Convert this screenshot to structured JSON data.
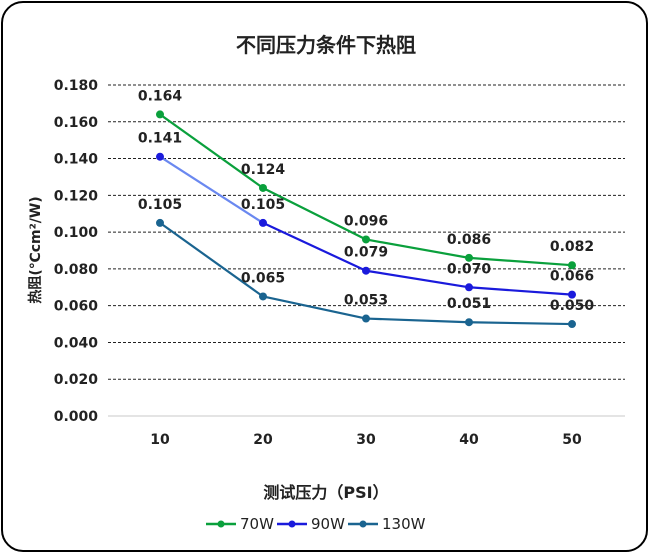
{
  "chart_data": {
    "type": "line",
    "title": "不同压力条件下热阻",
    "xlabel": "测试压力（PSI）",
    "ylabel": "热阻(℃cm²/W)",
    "categories": [
      "10",
      "20",
      "30",
      "40",
      "50"
    ],
    "ylim": [
      0,
      0.18
    ],
    "yticks": [
      "0.000",
      "0.020",
      "0.040",
      "0.060",
      "0.080",
      "0.100",
      "0.120",
      "0.140",
      "0.160",
      "0.180"
    ],
    "grid": true,
    "legend": "bottom",
    "series": [
      {
        "name": "70W",
        "color": "#0aa03c",
        "values": [
          0.164,
          0.124,
          0.096,
          0.086,
          0.082
        ],
        "labels": [
          "0.164",
          "0.124",
          "0.096",
          "0.086",
          "0.082"
        ]
      },
      {
        "name": "90W",
        "color": "#1a1adc",
        "values": [
          0.141,
          0.105,
          0.079,
          0.07,
          0.066
        ],
        "labels": [
          "0.141",
          "0.105",
          "0.079",
          "0.070",
          "0.066"
        ]
      },
      {
        "name": "130W",
        "color": "#1a6490",
        "values": [
          0.105,
          0.065,
          0.053,
          0.051,
          0.05
        ],
        "labels": [
          "0.105",
          "0.065",
          "0.053",
          "0.051",
          "0.050"
        ]
      }
    ]
  }
}
